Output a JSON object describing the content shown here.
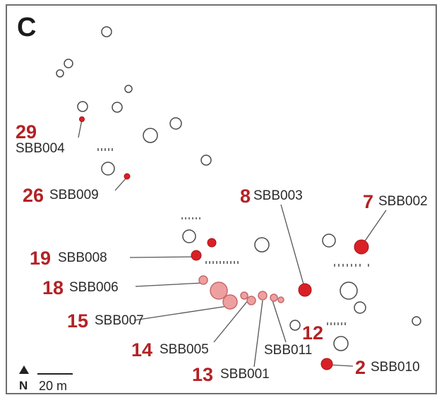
{
  "panel_letter": "C",
  "colors": {
    "site_red": "#d92027",
    "site_pink": "#eea0a0",
    "site_pink_stroke": "#c66a6a",
    "label_red": "#b32225",
    "outline": "#4a4a4a"
  },
  "sites": [
    {
      "number": "29",
      "code": "SBB004",
      "fill": "red"
    },
    {
      "number": "26",
      "code": "SBB009",
      "fill": "red"
    },
    {
      "number": "8",
      "code": "SBB003",
      "fill": "red"
    },
    {
      "number": "7",
      "code": "SBB002",
      "fill": "red"
    },
    {
      "number": "19",
      "code": "SBB008",
      "fill": "red"
    },
    {
      "number": "18",
      "code": "SBB006",
      "fill": "pink"
    },
    {
      "number": "15",
      "code": "SBB007",
      "fill": "pink"
    },
    {
      "number": "14",
      "code": "SBB005",
      "fill": "pink"
    },
    {
      "number": "13",
      "code": "SBB001",
      "fill": "pink"
    },
    {
      "number": "12",
      "code": "SBB011",
      "fill": "pink"
    },
    {
      "number": "2",
      "code": "SBB010",
      "fill": "red"
    }
  ],
  "scale_bar": {
    "north_label": "N",
    "distance_label": "20 m"
  }
}
